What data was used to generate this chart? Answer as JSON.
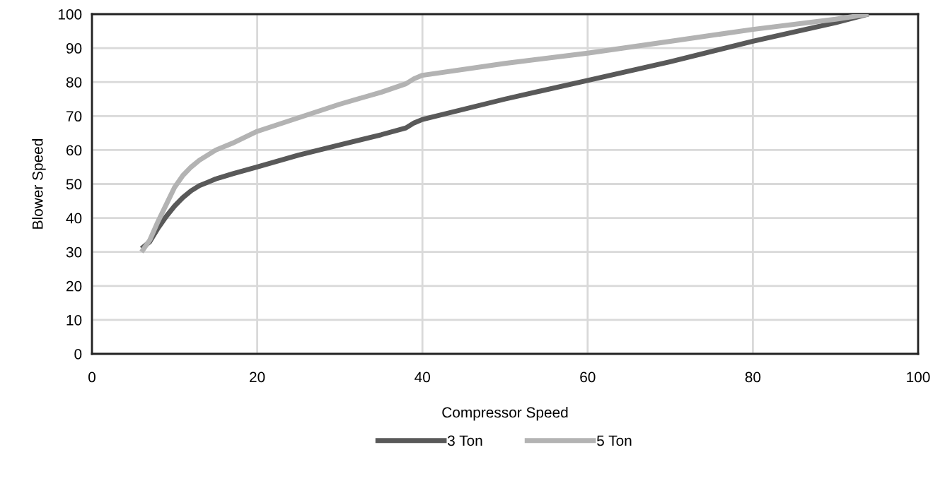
{
  "chart_data": {
    "type": "line",
    "xlabel": "Compressor Speed",
    "ylabel": "Blower Speed",
    "xlim": [
      0,
      100
    ],
    "xticks": [
      0,
      20,
      40,
      60,
      80,
      100
    ],
    "ylim": [
      0,
      100
    ],
    "yticks": [
      0,
      10,
      20,
      30,
      40,
      50,
      60,
      70,
      80,
      90,
      100
    ],
    "grid": true,
    "legend": "bottom",
    "marker": "none",
    "line_style": "solid",
    "series": [
      {
        "name": "3 Ton",
        "color": "#595959",
        "x": [
          6,
          7,
          8,
          9,
          10,
          11,
          12,
          13,
          14,
          15,
          17,
          20,
          25,
          30,
          35,
          38,
          39,
          40,
          50,
          60,
          70,
          80,
          90,
          94
        ],
        "values": [
          31,
          33,
          37,
          40.5,
          43.5,
          46,
          48,
          49.5,
          50.5,
          51.5,
          53,
          55,
          58.5,
          61.5,
          64.5,
          66.5,
          68,
          69,
          75,
          80.5,
          86,
          92,
          97.5,
          100
        ]
      },
      {
        "name": "5 Ton",
        "color": "#b3b3b3",
        "x": [
          6,
          7,
          8,
          9,
          10,
          11,
          12,
          13,
          14,
          15,
          17,
          20,
          25,
          30,
          35,
          38,
          39,
          40,
          50,
          60,
          70,
          80,
          90,
          94
        ],
        "values": [
          30,
          33.5,
          39,
          44,
          49,
          52.5,
          55,
          57,
          58.5,
          60,
          62,
          65.5,
          69.5,
          73.5,
          77,
          79.5,
          81,
          82,
          85.5,
          88.5,
          92,
          95.5,
          98.5,
          100
        ]
      }
    ]
  }
}
